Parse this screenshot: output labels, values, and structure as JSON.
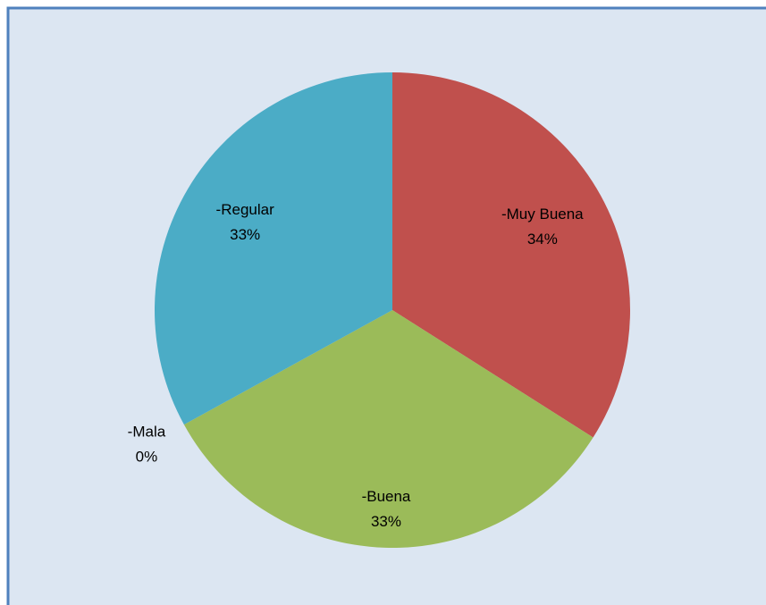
{
  "chart_data": {
    "type": "pie",
    "categories": [
      "-Muy Buena",
      "-Buena",
      "-Mala",
      "-Regular"
    ],
    "values": [
      34,
      33,
      0,
      33
    ],
    "value_labels": [
      "34%",
      "33%",
      "0%",
      "33%"
    ],
    "colors": [
      "#C0504D",
      "#9BBB59",
      "#8064A2",
      "#4BACC6"
    ]
  }
}
